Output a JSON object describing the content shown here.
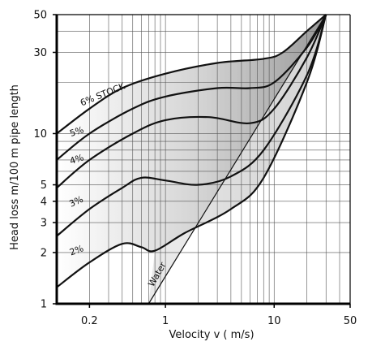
{
  "chart_data": {
    "type": "line",
    "title": "",
    "xlabel": "Velocity v ( m/s)",
    "ylabel": "Head loss m/100 m pipe length",
    "x_scale": "log",
    "y_scale": "log",
    "xlim": [
      0.1,
      50
    ],
    "ylim": [
      1,
      50
    ],
    "grid": true,
    "legend": "none",
    "x_ticks": [
      {
        "value": 0.2,
        "label": "0.2"
      },
      {
        "value": 1,
        "label": "1"
      },
      {
        "value": 10,
        "label": "10"
      },
      {
        "value": 50,
        "label": "50"
      }
    ],
    "y_ticks": [
      {
        "value": 1,
        "label": "1"
      },
      {
        "value": 2,
        "label": "2"
      },
      {
        "value": 3,
        "label": "3"
      },
      {
        "value": 4,
        "label": "4"
      },
      {
        "value": 5,
        "label": "5"
      },
      {
        "value": 10,
        "label": "10"
      },
      {
        "value": 30,
        "label": "30"
      },
      {
        "value": 50,
        "label": "50"
      }
    ],
    "series": [
      {
        "name": "6% STOCK",
        "points": [
          [
            0.1,
            10
          ],
          [
            0.2,
            14
          ],
          [
            0.4,
            18.5
          ],
          [
            1,
            22.5
          ],
          [
            3,
            26
          ],
          [
            8,
            27.5
          ],
          [
            12,
            30
          ],
          [
            20,
            40
          ],
          [
            30,
            50
          ]
        ]
      },
      {
        "name": "5%",
        "points": [
          [
            0.1,
            7
          ],
          [
            0.2,
            10
          ],
          [
            0.5,
            14
          ],
          [
            1,
            16.5
          ],
          [
            3,
            18.5
          ],
          [
            6,
            18.5
          ],
          [
            10,
            20
          ],
          [
            20,
            32
          ],
          [
            30,
            50
          ]
        ]
      },
      {
        "name": "4%",
        "points": [
          [
            0.1,
            4.8
          ],
          [
            0.2,
            7
          ],
          [
            0.5,
            10
          ],
          [
            1,
            12
          ],
          [
            2.5,
            12.5
          ],
          [
            6,
            11.5
          ],
          [
            10,
            14
          ],
          [
            20,
            28
          ],
          [
            30,
            50
          ]
        ]
      },
      {
        "name": "3%",
        "points": [
          [
            0.1,
            2.5
          ],
          [
            0.2,
            3.6
          ],
          [
            0.4,
            4.8
          ],
          [
            0.6,
            5.5
          ],
          [
            1,
            5.3
          ],
          [
            2,
            5
          ],
          [
            4,
            5.6
          ],
          [
            8,
            8
          ],
          [
            20,
            22
          ],
          [
            30,
            50
          ]
        ]
      },
      {
        "name": "2%",
        "points": [
          [
            0.1,
            1.25
          ],
          [
            0.2,
            1.75
          ],
          [
            0.4,
            2.25
          ],
          [
            0.6,
            2.15
          ],
          [
            0.8,
            2.05
          ],
          [
            1.5,
            2.6
          ],
          [
            4,
            3.6
          ],
          [
            8,
            5.5
          ],
          [
            20,
            20
          ],
          [
            30,
            50
          ]
        ]
      },
      {
        "name": "Water",
        "points": [
          [
            0.7,
            1
          ],
          [
            30,
            50
          ]
        ]
      }
    ]
  }
}
